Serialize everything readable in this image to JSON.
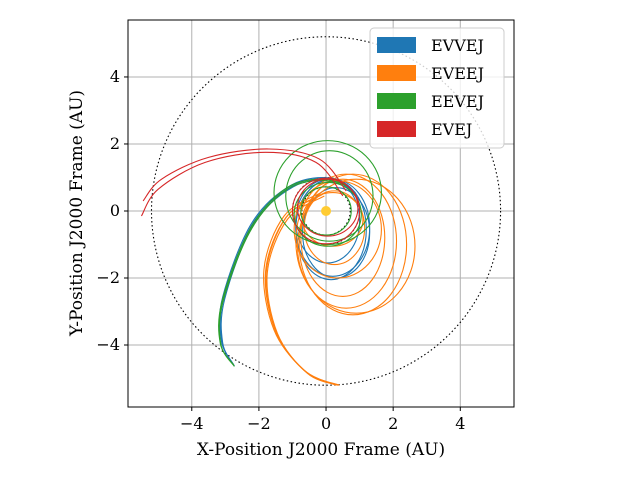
{
  "chart_data": {
    "type": "line",
    "title": "",
    "xlabel": "X-Position J2000 Frame (AU)",
    "ylabel": "Y-Position J2000 Frame (AU)",
    "xlim": [
      -5.9,
      5.6
    ],
    "ylim": [
      -5.85,
      5.7
    ],
    "xticks": [
      -4,
      -2,
      0,
      2,
      4
    ],
    "yticks": [
      -4,
      -2,
      0,
      2,
      4
    ],
    "xtick_labels": [
      "−4",
      "−2",
      "0",
      "2",
      "4"
    ],
    "ytick_labels": [
      "−4",
      "−2",
      "0",
      "2",
      "4"
    ],
    "grid": true,
    "legend_position": "top-right",
    "legend": [
      {
        "label": "EVVEJ",
        "color": "#1f77b4"
      },
      {
        "label": "EVEEJ",
        "color": "#ff7f0e"
      },
      {
        "label": "EEVEJ",
        "color": "#2ca02c"
      },
      {
        "label": "EVEJ",
        "color": "#d62728"
      }
    ],
    "sun": {
      "x": 0,
      "y": 0,
      "color": "#ffcc33"
    },
    "reference_orbits": [
      {
        "name": "Venus orbit",
        "a": 0.72,
        "style": "dotted"
      },
      {
        "name": "Earth orbit",
        "a": 1.0,
        "style": "dotted"
      },
      {
        "name": "Jupiter orbit",
        "a": 5.2,
        "style": "dotted"
      }
    ],
    "series": [
      {
        "name": "EVVEJ",
        "color": "#1f77b4",
        "loops": [
          {
            "cx": 0.15,
            "cy": -0.55,
            "rx": 1.05,
            "ry": 1.5
          },
          {
            "cx": 0.2,
            "cy": -0.5,
            "rx": 1.1,
            "ry": 1.45
          },
          {
            "cx": 0.05,
            "cy": -0.3,
            "rx": 0.95,
            "ry": 1.25
          },
          {
            "cx": 0.3,
            "cy": -0.65,
            "rx": 1.0,
            "ry": 1.35
          }
        ],
        "arcs": [
          {
            "points": [
              [
                0.9,
                0.5
              ],
              [
                0.2,
                0.95
              ],
              [
                -1.0,
                0.75
              ],
              [
                -2.2,
                -0.4
              ],
              [
                -3.05,
                -2.6
              ],
              [
                -3.1,
                -3.9
              ],
              [
                -2.75,
                -4.6
              ]
            ]
          },
          {
            "points": [
              [
                0.92,
                0.45
              ],
              [
                0.22,
                0.92
              ],
              [
                -0.98,
                0.72
              ],
              [
                -2.18,
                -0.43
              ],
              [
                -3.02,
                -2.63
              ],
              [
                -3.08,
                -3.93
              ],
              [
                -2.73,
                -4.63
              ]
            ]
          },
          {
            "points": [
              [
                0.88,
                0.55
              ],
              [
                0.18,
                0.98
              ],
              [
                -1.02,
                0.78
              ],
              [
                -2.22,
                -0.37
              ],
              [
                -3.08,
                -2.57
              ],
              [
                -3.12,
                -3.87
              ],
              [
                -2.77,
                -4.57
              ]
            ]
          }
        ]
      },
      {
        "name": "EVEEJ",
        "color": "#ff7f0e",
        "loops": [
          {
            "cx": 0.6,
            "cy": -0.9,
            "rx": 1.5,
            "ry": 2.0
          },
          {
            "cx": 0.8,
            "cy": -1.0,
            "rx": 1.6,
            "ry": 2.1
          },
          {
            "cx": 0.5,
            "cy": -0.8,
            "rx": 1.25,
            "ry": 1.75
          },
          {
            "cx": 0.25,
            "cy": -0.5,
            "rx": 0.9,
            "ry": 1.1
          },
          {
            "cx": 0.9,
            "cy": -1.05,
            "rx": 1.75,
            "ry": 2.0
          },
          {
            "cx": 0.2,
            "cy": -0.25,
            "rx": 0.9,
            "ry": 0.8
          },
          {
            "cx": 0.35,
            "cy": -0.55,
            "rx": 1.3,
            "ry": 1.45
          }
        ],
        "arcs": [
          {
            "points": [
              [
                -0.1,
                0.5
              ],
              [
                -1.2,
                -0.2
              ],
              [
                -1.8,
                -1.8
              ],
              [
                -1.5,
                -3.6
              ],
              [
                -0.6,
                -4.8
              ],
              [
                0.4,
                -5.2
              ]
            ]
          },
          {
            "points": [
              [
                -0.05,
                0.45
              ],
              [
                -1.15,
                -0.25
              ],
              [
                -1.75,
                -1.85
              ],
              [
                -1.45,
                -3.65
              ],
              [
                -0.55,
                -4.85
              ],
              [
                0.35,
                -5.2
              ]
            ]
          },
          {
            "points": [
              [
                -0.15,
                0.55
              ],
              [
                -1.25,
                -0.15
              ],
              [
                -1.85,
                -1.75
              ],
              [
                -1.55,
                -3.55
              ],
              [
                -0.65,
                -4.75
              ],
              [
                0.3,
                -5.2
              ]
            ]
          },
          {
            "points": [
              [
                -0.08,
                0.52
              ],
              [
                -1.18,
                -0.18
              ],
              [
                -1.78,
                -1.82
              ],
              [
                -1.48,
                -3.62
              ],
              [
                -0.58,
                -4.82
              ],
              [
                0.38,
                -5.2
              ]
            ]
          }
        ]
      },
      {
        "name": "EEVEJ",
        "color": "#2ca02c",
        "loops": [
          {
            "cx": 0.05,
            "cy": 0.55,
            "rx": 1.6,
            "ry": 1.55
          },
          {
            "cx": 0.1,
            "cy": 0.45,
            "rx": 1.3,
            "ry": 1.35
          },
          {
            "cx": 0.0,
            "cy": 0.0,
            "rx": 0.75,
            "ry": 0.72
          },
          {
            "cx": 0.05,
            "cy": -0.1,
            "rx": 1.0,
            "ry": 0.95
          }
        ],
        "arcs": [
          {
            "points": [
              [
                0.6,
                0.8
              ],
              [
                -0.3,
                0.95
              ],
              [
                -1.3,
                0.6
              ],
              [
                -2.3,
                -0.6
              ],
              [
                -3.1,
                -2.7
              ],
              [
                -3.15,
                -3.95
              ],
              [
                -2.75,
                -4.6
              ]
            ]
          },
          {
            "points": [
              [
                0.62,
                0.76
              ],
              [
                -0.28,
                0.91
              ],
              [
                -1.28,
                0.56
              ],
              [
                -2.28,
                -0.64
              ],
              [
                -3.08,
                -2.74
              ],
              [
                -3.13,
                -3.99
              ],
              [
                -2.73,
                -4.64
              ]
            ]
          }
        ]
      },
      {
        "name": "EVEJ",
        "color": "#d62728",
        "loops": [
          {
            "cx": 0.0,
            "cy": 0.0,
            "rx": 1.0,
            "ry": 0.98
          },
          {
            "cx": 0.05,
            "cy": 0.1,
            "rx": 0.9,
            "ry": 0.85
          }
        ],
        "arcs": [
          {
            "points": [
              [
                0.6,
                0.6
              ],
              [
                -0.2,
                1.55
              ],
              [
                -1.7,
                1.85
              ],
              [
                -3.5,
                1.6
              ],
              [
                -4.9,
                0.95
              ],
              [
                -5.45,
                0.3
              ]
            ]
          },
          {
            "points": [
              [
                0.5,
                0.45
              ],
              [
                -0.3,
                1.45
              ],
              [
                -1.8,
                1.75
              ],
              [
                -3.6,
                1.45
              ],
              [
                -5.0,
                0.65
              ],
              [
                -5.5,
                -0.15
              ]
            ]
          }
        ]
      }
    ]
  }
}
